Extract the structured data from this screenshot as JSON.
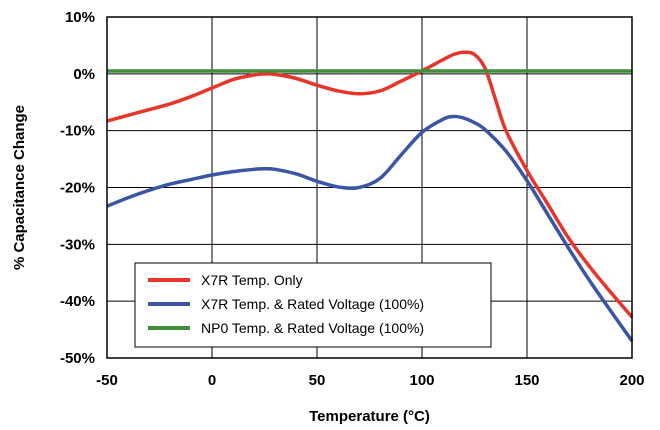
{
  "chart_data": {
    "type": "line",
    "title": "",
    "xlabel": "Temperature (°C)",
    "ylabel": "% Capacitance Change",
    "xlim": [
      -50,
      200
    ],
    "ylim": [
      -50,
      10
    ],
    "x_ticks": [
      -50,
      0,
      50,
      100,
      150,
      200
    ],
    "x_tick_labels": [
      "-50",
      "0",
      "50",
      "100",
      "150",
      "200"
    ],
    "y_ticks": [
      10,
      0,
      -10,
      -20,
      -30,
      -40,
      -50
    ],
    "y_tick_labels": [
      "10%",
      "0%",
      "-10%",
      "-20%",
      "-30%",
      "-40%",
      "-50%"
    ],
    "grid": true,
    "legend_position": "bottom-left",
    "series": [
      {
        "name": "X7R Temp. Only",
        "color": "#e8352b",
        "x": [
          -50,
          -40,
          -30,
          -20,
          -10,
          0,
          10,
          20,
          25,
          30,
          40,
          50,
          60,
          70,
          80,
          90,
          100,
          110,
          115,
          120,
          125,
          130,
          135,
          140,
          150,
          160,
          170,
          180,
          190,
          200
        ],
        "y": [
          -8.3,
          -7.3,
          -6.3,
          -5.3,
          -4.0,
          -2.5,
          -1.0,
          -0.2,
          0.0,
          -0.1,
          -0.8,
          -2.0,
          -3.0,
          -3.5,
          -3.0,
          -1.3,
          0.5,
          2.5,
          3.4,
          3.8,
          3.4,
          1.0,
          -4.5,
          -10.0,
          -17.0,
          -23.0,
          -29.0,
          -34.0,
          -38.5,
          -42.8
        ]
      },
      {
        "name": "X7R Temp. & Rated Voltage (100%)",
        "color": "#3a55a4",
        "x": [
          -50,
          -40,
          -30,
          -20,
          -10,
          0,
          10,
          20,
          25,
          30,
          40,
          50,
          60,
          70,
          80,
          90,
          100,
          110,
          115,
          120,
          125,
          130,
          140,
          150,
          160,
          170,
          180,
          190,
          200
        ],
        "y": [
          -23.3,
          -21.8,
          -20.5,
          -19.4,
          -18.6,
          -17.8,
          -17.2,
          -16.8,
          -16.7,
          -16.8,
          -17.6,
          -18.9,
          -19.9,
          -20.0,
          -18.4,
          -14.3,
          -10.3,
          -8.0,
          -7.5,
          -7.8,
          -8.6,
          -9.8,
          -13.6,
          -18.8,
          -24.8,
          -30.8,
          -36.5,
          -41.8,
          -47.0
        ]
      },
      {
        "name": "NP0 Temp. & Rated Voltage (100%)",
        "color": "#3f8f3a",
        "x": [
          -50,
          200
        ],
        "y": [
          0.5,
          0.5
        ]
      }
    ]
  }
}
